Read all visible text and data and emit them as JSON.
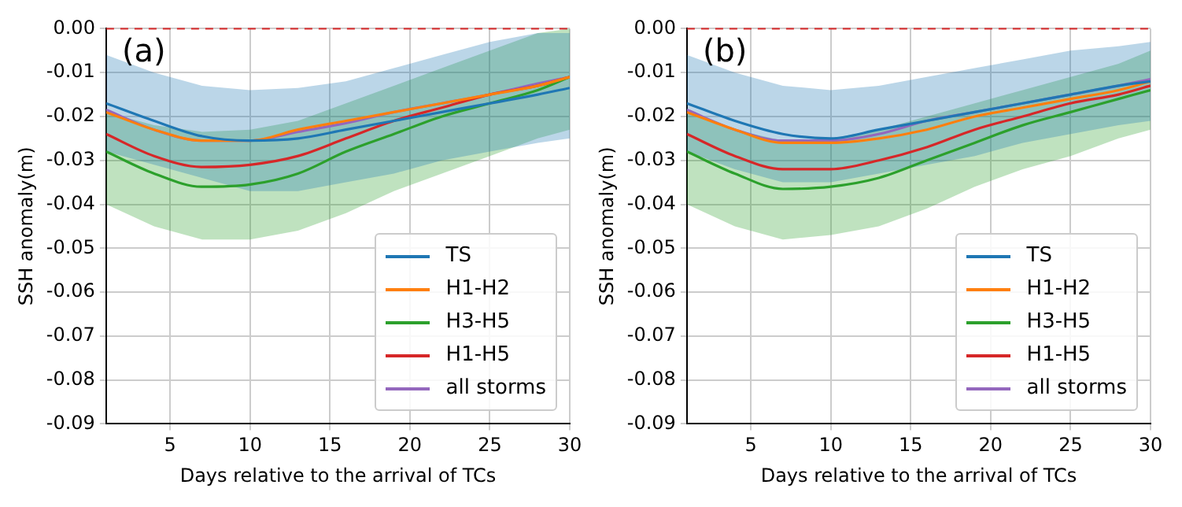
{
  "chart_data": [
    {
      "type": "line",
      "xlabel": "Days relative to the arrival of TCs",
      "ylabel": "SSH anomaly(m)",
      "annotations": [
        "(a)"
      ],
      "x": [
        1,
        4,
        7,
        10,
        13,
        16,
        19,
        22,
        25,
        28,
        30
      ],
      "xlim": [
        1,
        30
      ],
      "xticks": [
        5,
        10,
        15,
        20,
        25,
        30
      ],
      "ylim": [
        -0.09,
        0
      ],
      "yticks": [
        -0.09,
        -0.08,
        -0.07,
        -0.06,
        -0.05,
        -0.04,
        -0.03,
        -0.02,
        -0.01,
        {
          "value": 0,
          "label": "0.00"
        }
      ],
      "grid": true,
      "legend": "bottom right",
      "ref_lines": [
        {
          "axis": "y",
          "value": 0,
          "color": "#d62728",
          "line_style": "dashed"
        }
      ],
      "series": [
        {
          "name": "TS",
          "color": "#1f77b4",
          "values": [
            -0.017,
            -0.021,
            -0.0245,
            -0.0255,
            -0.025,
            -0.023,
            -0.021,
            -0.019,
            -0.017,
            -0.015,
            -0.0135
          ],
          "lower": [
            -0.028,
            -0.031,
            -0.034,
            -0.037,
            -0.037,
            -0.035,
            -0.033,
            -0.03,
            -0.028,
            -0.026,
            -0.025
          ],
          "upper": [
            -0.006,
            -0.01,
            -0.013,
            -0.014,
            -0.0135,
            -0.012,
            -0.009,
            -0.006,
            -0.003,
            -0.001,
            -0.001
          ]
        },
        {
          "name": "H1-H2",
          "color": "#ff7f0e",
          "values": [
            -0.019,
            -0.023,
            -0.0255,
            -0.0255,
            -0.023,
            -0.021,
            -0.019,
            -0.017,
            -0.015,
            -0.013,
            -0.011
          ]
        },
        {
          "name": "H3-H5",
          "color": "#2ca02c",
          "values": [
            -0.028,
            -0.033,
            -0.036,
            -0.0355,
            -0.033,
            -0.028,
            -0.024,
            -0.02,
            -0.017,
            -0.014,
            -0.011
          ],
          "lower": [
            -0.04,
            -0.045,
            -0.048,
            -0.048,
            -0.046,
            -0.042,
            -0.037,
            -0.033,
            -0.029,
            -0.025,
            -0.023
          ],
          "upper": [
            -0.019,
            -0.022,
            -0.0235,
            -0.023,
            -0.021,
            -0.017,
            -0.013,
            -0.009,
            -0.005,
            -0.001,
            0
          ]
        },
        {
          "name": "H1-H5",
          "color": "#d62728",
          "values": [
            -0.024,
            -0.029,
            -0.0315,
            -0.031,
            -0.029,
            -0.025,
            -0.021,
            -0.018,
            -0.015,
            -0.013,
            -0.011
          ]
        },
        {
          "name": "all storms",
          "color": "#9467bd",
          "values": [
            -0.0185,
            -0.023,
            -0.0255,
            -0.0255,
            -0.0235,
            -0.0215,
            -0.019,
            -0.017,
            -0.015,
            -0.0125,
            -0.011
          ]
        }
      ]
    },
    {
      "type": "line",
      "xlabel": "Days relative to the arrival of TCs",
      "ylabel": "SSH anomaly(m)",
      "annotations": [
        "(b)"
      ],
      "x": [
        1,
        4,
        7,
        10,
        13,
        16,
        19,
        22,
        25,
        28,
        30
      ],
      "xlim": [
        1,
        30
      ],
      "xticks": [
        5,
        10,
        15,
        20,
        25,
        30
      ],
      "ylim": [
        -0.09,
        0
      ],
      "yticks": [
        -0.09,
        -0.08,
        -0.07,
        -0.06,
        -0.05,
        -0.04,
        -0.03,
        -0.02,
        -0.01,
        {
          "value": 0,
          "label": "0.00"
        }
      ],
      "grid": true,
      "legend": "bottom right",
      "ref_lines": [
        {
          "axis": "y",
          "value": 0,
          "color": "#d62728",
          "line_style": "dashed"
        }
      ],
      "series": [
        {
          "name": "TS",
          "color": "#1f77b4",
          "values": [
            -0.017,
            -0.021,
            -0.024,
            -0.025,
            -0.023,
            -0.021,
            -0.019,
            -0.017,
            -0.015,
            -0.013,
            -0.012
          ],
          "lower": [
            -0.028,
            -0.032,
            -0.035,
            -0.035,
            -0.033,
            -0.031,
            -0.029,
            -0.026,
            -0.024,
            -0.022,
            -0.021
          ],
          "upper": [
            -0.006,
            -0.01,
            -0.013,
            -0.014,
            -0.013,
            -0.011,
            -0.009,
            -0.007,
            -0.005,
            -0.004,
            -0.003
          ]
        },
        {
          "name": "H1-H2",
          "color": "#ff7f0e",
          "values": [
            -0.019,
            -0.023,
            -0.026,
            -0.026,
            -0.025,
            -0.023,
            -0.02,
            -0.018,
            -0.016,
            -0.014,
            -0.012
          ]
        },
        {
          "name": "H3-H5",
          "color": "#2ca02c",
          "values": [
            -0.028,
            -0.033,
            -0.0365,
            -0.036,
            -0.034,
            -0.03,
            -0.026,
            -0.022,
            -0.019,
            -0.016,
            -0.014
          ],
          "lower": [
            -0.04,
            -0.045,
            -0.048,
            -0.047,
            -0.045,
            -0.041,
            -0.036,
            -0.032,
            -0.029,
            -0.025,
            -0.023
          ],
          "upper": [
            -0.019,
            -0.023,
            -0.0255,
            -0.025,
            -0.023,
            -0.02,
            -0.017,
            -0.014,
            -0.011,
            -0.008,
            -0.005
          ]
        },
        {
          "name": "H1-H5",
          "color": "#d62728",
          "values": [
            -0.024,
            -0.029,
            -0.032,
            -0.032,
            -0.03,
            -0.027,
            -0.023,
            -0.02,
            -0.017,
            -0.015,
            -0.013
          ]
        },
        {
          "name": "all storms",
          "color": "#9467bd",
          "values": [
            -0.0185,
            -0.023,
            -0.0255,
            -0.0255,
            -0.024,
            -0.021,
            -0.019,
            -0.017,
            -0.015,
            -0.013,
            -0.0115
          ]
        }
      ]
    }
  ]
}
